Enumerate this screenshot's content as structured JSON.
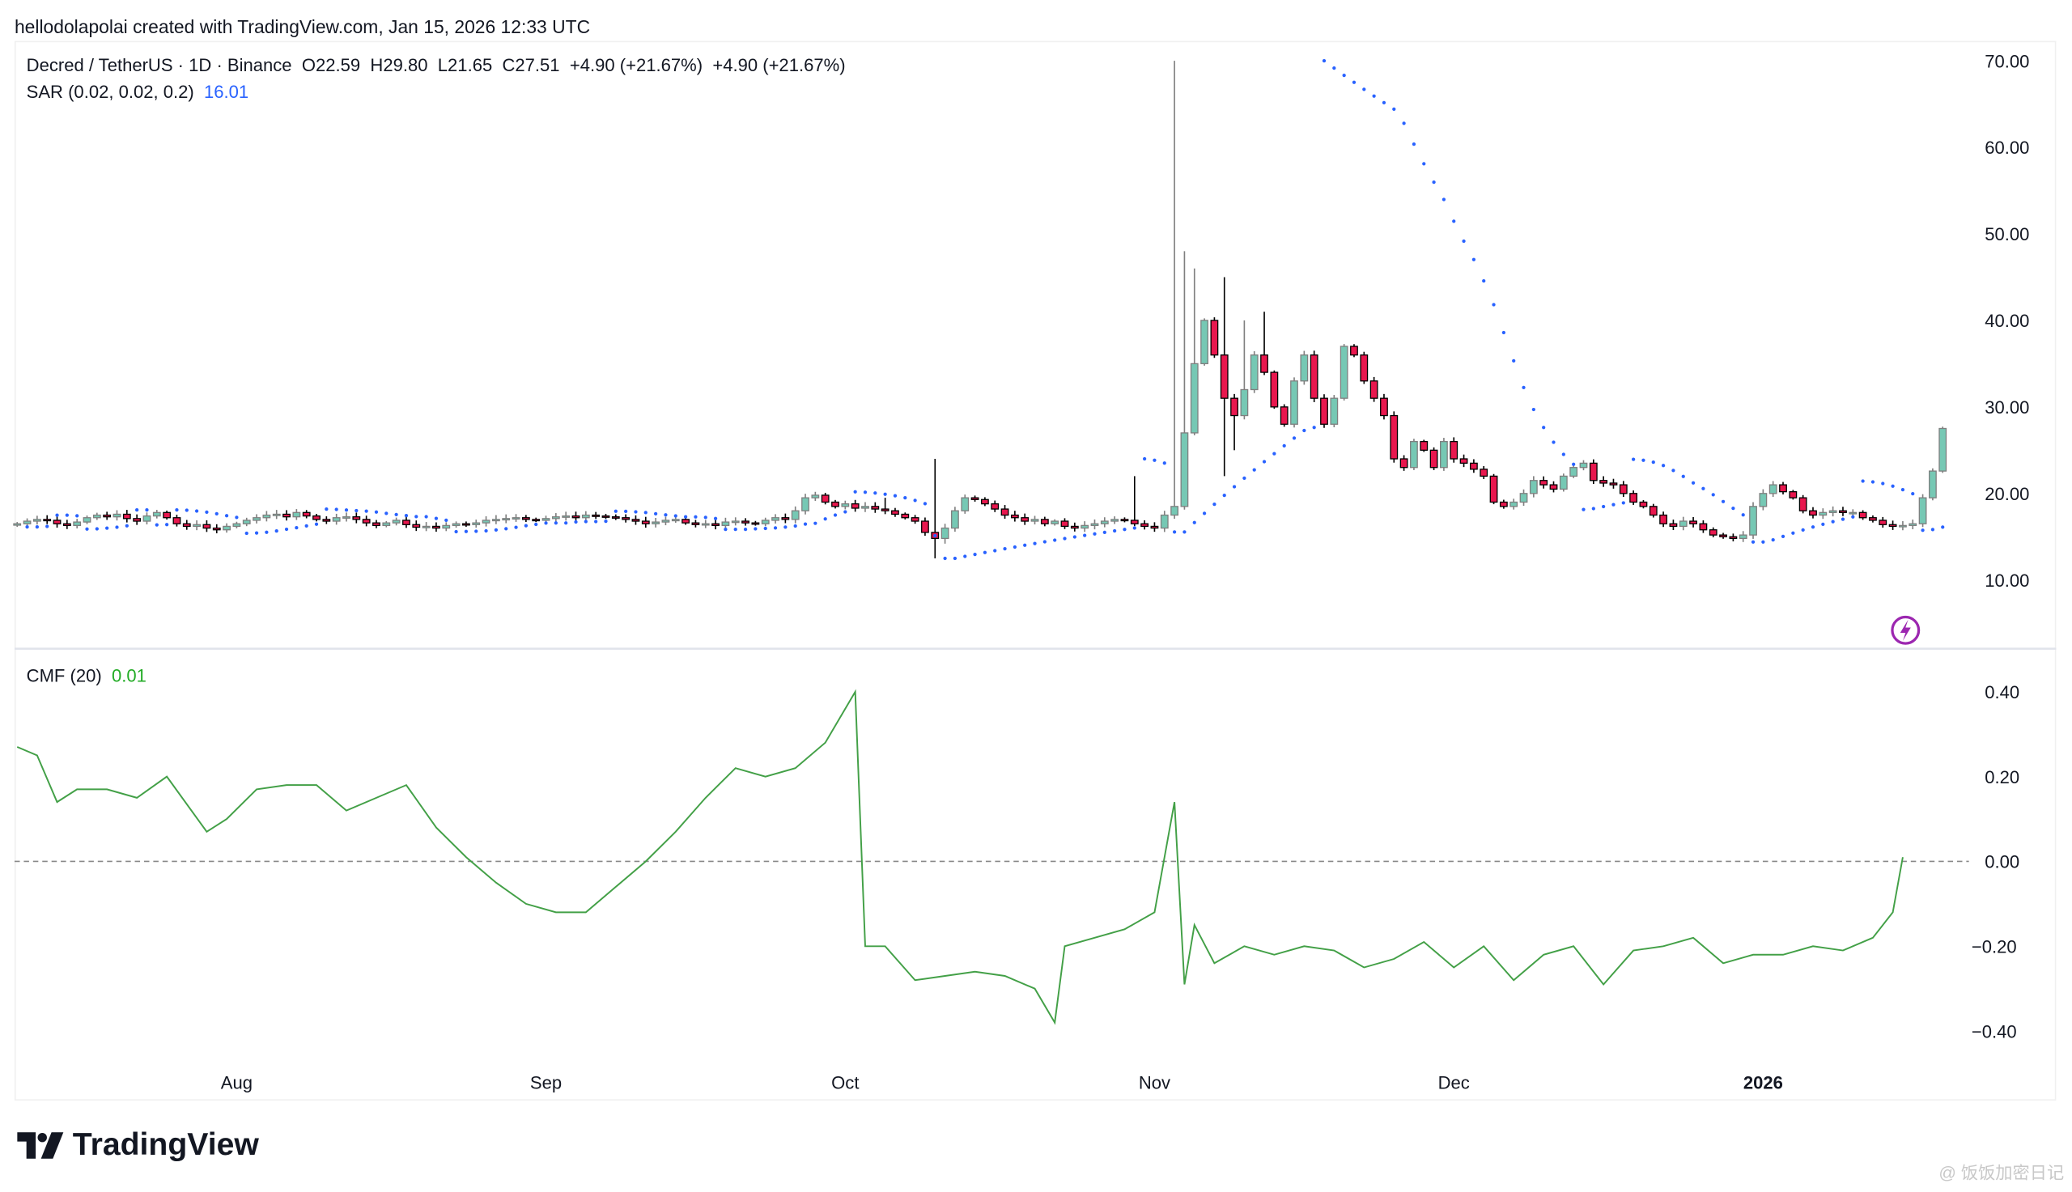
{
  "header": "hellodolapolai created with TradingView.com, Jan 15, 2026 12:33 UTC",
  "legend": {
    "symbol": "Decred / TetherUS · 1D · Binance",
    "open": "O22.59",
    "high": "H29.80",
    "low": "L21.65",
    "close": "C27.51",
    "change1": "+4.90 (+21.67%)",
    "change2": "+4.90 (+21.67%)",
    "sar_label": "SAR (0.02, 0.02, 0.2)",
    "sar_value": "16.01",
    "cmf_label": "CMF (20)",
    "cmf_value": "0.01"
  },
  "logo": "TradingView",
  "watermark": "@ 饭饭加密日记",
  "colors": {
    "up": "#76c8b4",
    "down": "#e8174e",
    "sar": "#2962ff",
    "cmf": "#43a047",
    "alert": "#9c27b0"
  },
  "chart_data": [
    {
      "type": "candlestick",
      "title": "Decred / TetherUS · 1D · Binance",
      "start_date": "2025-07-10",
      "price_ticks": [
        "70.00",
        "60.00",
        "50.00",
        "40.00",
        "30.00",
        "20.00",
        "10.00"
      ],
      "ylim": [
        3,
        72
      ],
      "x_ticks": [
        {
          "label": "Aug",
          "day": 22
        },
        {
          "label": "Sep",
          "day": 53
        },
        {
          "label": "Oct",
          "day": 83
        },
        {
          "label": "Nov",
          "day": 114
        },
        {
          "label": "Dec",
          "day": 144
        },
        {
          "label": "2026",
          "day": 175
        }
      ],
      "closes": [
        16.5,
        16.8,
        17,
        16.9,
        16.5,
        16.3,
        16.7,
        17.2,
        17.5,
        17.3,
        17.6,
        17.1,
        16.8,
        17.4,
        17.8,
        17.2,
        16.5,
        16.2,
        16.4,
        16.0,
        15.8,
        16.2,
        16.5,
        16.9,
        17.2,
        17.5,
        17.6,
        17.3,
        17.8,
        17.4,
        17.0,
        16.8,
        17.2,
        17.3,
        17.0,
        16.6,
        16.3,
        16.6,
        16.9,
        16.4,
        16.1,
        16.2,
        16.0,
        16.3,
        16.5,
        16.4,
        16.6,
        16.9,
        17.0,
        17.1,
        17.2,
        17.0,
        16.9,
        17.1,
        17.3,
        17.4,
        17.2,
        17.5,
        17.4,
        17.3,
        17.2,
        17.0,
        16.8,
        16.5,
        16.7,
        16.9,
        17.0,
        16.6,
        16.4,
        16.5,
        16.3,
        16.7,
        16.8,
        16.6,
        16.5,
        16.9,
        17.2,
        17.0,
        18.0,
        19.5,
        19.8,
        19.0,
        18.5,
        18.8,
        18.3,
        18.5,
        18.2,
        18.0,
        17.6,
        17.2,
        16.8,
        15.5,
        14.8,
        16.0,
        18.0,
        19.5,
        19.3,
        18.8,
        18.2,
        17.5,
        17.2,
        16.8,
        17.0,
        16.5,
        16.8,
        16.2,
        16.0,
        16.3,
        16.5,
        16.8,
        17.0,
        16.9,
        16.5,
        16.2,
        16.0,
        17.5,
        18.5,
        27,
        35,
        40,
        36,
        31,
        29,
        32,
        36,
        34,
        30,
        28,
        33,
        36,
        31,
        28,
        31,
        37,
        36,
        33,
        31,
        29,
        24,
        23,
        26,
        25,
        23,
        26,
        24,
        23.5,
        22.8,
        22,
        19,
        18.5,
        19,
        20,
        21.5,
        21,
        20.5,
        22,
        23,
        23.5,
        21.5,
        21.2,
        21,
        20,
        19,
        18.5,
        17.5,
        16.5,
        16.2,
        16.8,
        16.5,
        15.8,
        15.2,
        15,
        14.8,
        15.2,
        18.5,
        20,
        21,
        20.2,
        19.5,
        18,
        17.5,
        17.8,
        18,
        17.8,
        17.8,
        17.2,
        16.9,
        16.4,
        16.2,
        16.3,
        16.5,
        19.5,
        22.59,
        27.51
      ],
      "high_overrides": {
        "112": 22,
        "116": 70,
        "117": 48,
        "118": 46,
        "121": 45,
        "123": 40,
        "125": 41,
        "92": 24,
        "87": 19.5
      },
      "low_overrides": {
        "92": 12.5,
        "93": 14.2,
        "121": 22,
        "122": 25
      },
      "sar_params": [
        0.02,
        0.02,
        0.2
      ]
    },
    {
      "type": "line",
      "title": "CMF (20)",
      "y_ticks": [
        "0.40",
        "0.20",
        "0.00",
        "−0.20",
        "−0.40"
      ],
      "ylim": [
        -0.45,
        0.45
      ],
      "zero_line": true,
      "points_day_value": [
        [
          0,
          0.27
        ],
        [
          2,
          0.25
        ],
        [
          4,
          0.14
        ],
        [
          6,
          0.17
        ],
        [
          9,
          0.17
        ],
        [
          12,
          0.15
        ],
        [
          15,
          0.2
        ],
        [
          19,
          0.07
        ],
        [
          21,
          0.1
        ],
        [
          24,
          0.17
        ],
        [
          27,
          0.18
        ],
        [
          30,
          0.18
        ],
        [
          33,
          0.12
        ],
        [
          36,
          0.15
        ],
        [
          39,
          0.18
        ],
        [
          42,
          0.08
        ],
        [
          45,
          0.01
        ],
        [
          48,
          -0.05
        ],
        [
          51,
          -0.1
        ],
        [
          54,
          -0.12
        ],
        [
          57,
          -0.12
        ],
        [
          60,
          -0.06
        ],
        [
          63,
          0.0
        ],
        [
          66,
          0.07
        ],
        [
          69,
          0.15
        ],
        [
          72,
          0.22
        ],
        [
          75,
          0.2
        ],
        [
          78,
          0.22
        ],
        [
          81,
          0.28
        ],
        [
          84,
          0.4
        ],
        [
          85,
          -0.2
        ],
        [
          87,
          -0.2
        ],
        [
          90,
          -0.28
        ],
        [
          93,
          -0.27
        ],
        [
          96,
          -0.26
        ],
        [
          99,
          -0.27
        ],
        [
          102,
          -0.3
        ],
        [
          104,
          -0.38
        ],
        [
          105,
          -0.2
        ],
        [
          108,
          -0.18
        ],
        [
          111,
          -0.16
        ],
        [
          114,
          -0.12
        ],
        [
          116,
          0.14
        ],
        [
          117,
          -0.29
        ],
        [
          118,
          -0.15
        ],
        [
          120,
          -0.24
        ],
        [
          123,
          -0.2
        ],
        [
          126,
          -0.22
        ],
        [
          129,
          -0.2
        ],
        [
          132,
          -0.21
        ],
        [
          135,
          -0.25
        ],
        [
          138,
          -0.23
        ],
        [
          141,
          -0.19
        ],
        [
          144,
          -0.25
        ],
        [
          147,
          -0.2
        ],
        [
          150,
          -0.28
        ],
        [
          153,
          -0.22
        ],
        [
          156,
          -0.2
        ],
        [
          159,
          -0.29
        ],
        [
          162,
          -0.21
        ],
        [
          165,
          -0.2
        ],
        [
          168,
          -0.18
        ],
        [
          171,
          -0.24
        ],
        [
          174,
          -0.22
        ],
        [
          177,
          -0.22
        ],
        [
          180,
          -0.2
        ],
        [
          183,
          -0.21
        ],
        [
          186,
          -0.18
        ],
        [
          188,
          -0.12
        ],
        [
          189,
          0.01
        ]
      ]
    }
  ]
}
